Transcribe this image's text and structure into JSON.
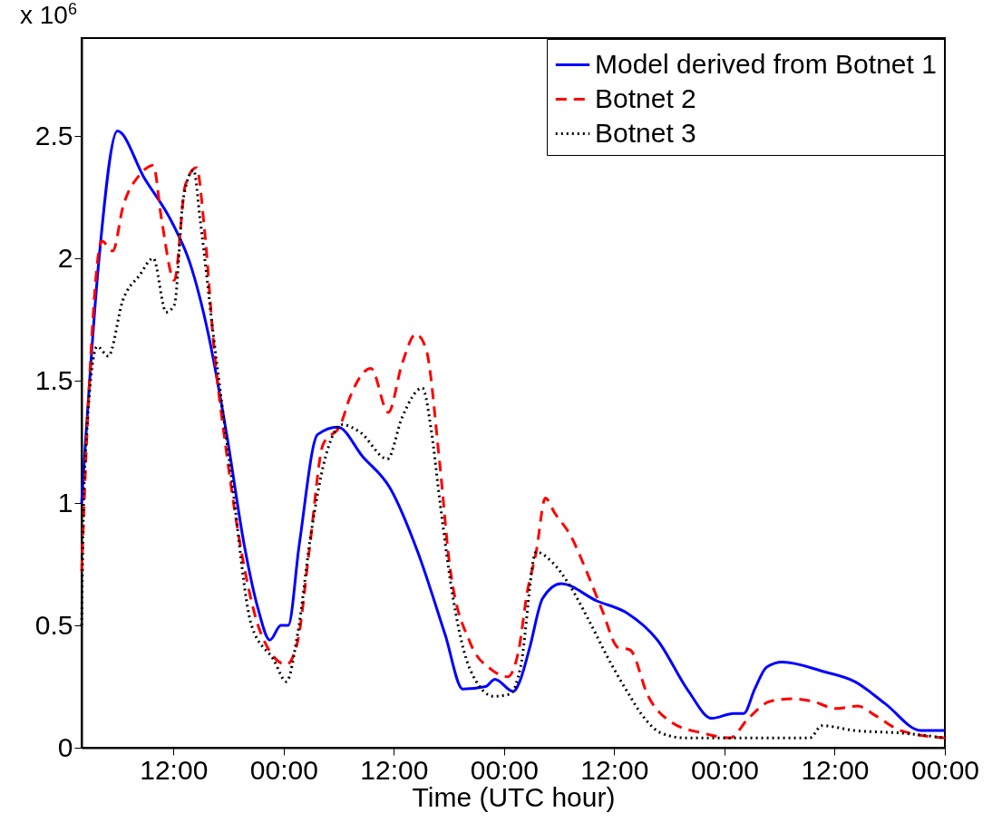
{
  "chart_data": {
    "type": "line",
    "xlabel": "Time (UTC hour)",
    "annotations": [
      "x 10$^{6}$"
    ],
    "xlim": [
      "--01-01T02:00",
      "--01-05T00:00"
    ],
    "ylim": [
      0,
      2.9
    ],
    "xticks": [
      {
        "value": "--01-01T12:00",
        "label": "12:00"
      },
      {
        "value": "--01-02T00:00",
        "label": "00:00"
      },
      {
        "value": "--01-02T12:00",
        "label": "12:00"
      },
      {
        "value": "--01-03T00:00",
        "label": "00:00"
      },
      {
        "value": "--01-03T12:00",
        "label": "12:00"
      },
      {
        "value": "--01-04T00:00",
        "label": "00:00"
      },
      {
        "value": "--01-04T12:00",
        "label": "12:00"
      },
      {
        "value": "--01-05T00:00",
        "label": "00:00"
      }
    ],
    "yticks": [
      0,
      0.5,
      1,
      1.5,
      2,
      2.5
    ],
    "grid": false,
    "legend": "top right",
    "series": [
      {
        "name": "Model derived from Botnet 1",
        "color": "#0000ff",
        "line_style": "solid",
        "x": [
          "--01-01T02:00",
          "--01-01T03:54",
          "--01-01T05:54",
          "--01-01T08:48",
          "--01-01T11:48",
          "--01-01T13:48",
          "--01-01T15:48",
          "--01-01T17:48",
          "--01-01T19:42",
          "--01-01T21:12",
          "--01-01T22:30",
          "--01-01T23:42",
          "--01-02T00:30",
          "--01-02T01:42",
          "--01-02T03:42",
          "--01-02T05:54",
          "--01-02T08:36",
          "--01-02T11:36",
          "--01-02T14:36",
          "--01-02T17:36",
          "--01-02T19:30",
          "--01-02T22:00",
          "--01-02T23:00",
          "--01-03T01:00",
          "--01-03T01:42",
          "--01-03T02:48",
          "--01-03T04:12",
          "--01-03T06:12",
          "--01-03T10:06",
          "--01-03T13:24",
          "--01-03T16:42",
          "--01-03T20:06",
          "--01-03T22:36",
          "--01-04T01:00",
          "--01-04T02:06",
          "--01-04T03:18",
          "--01-04T04:36",
          "--01-04T06:18",
          "--01-04T10:54",
          "--01-04T14:12",
          "--01-04T17:30",
          "--01-04T21:24",
          "--01-05T00:00"
        ],
        "values": [
          1.0,
          2.0,
          2.52,
          2.33,
          2.15,
          1.98,
          1.69,
          1.28,
          0.83,
          0.57,
          0.44,
          0.5,
          0.5,
          0.83,
          1.28,
          1.31,
          1.19,
          1.06,
          0.8,
          0.46,
          0.24,
          0.25,
          0.28,
          0.23,
          0.27,
          0.41,
          0.61,
          0.67,
          0.6,
          0.55,
          0.44,
          0.23,
          0.12,
          0.14,
          0.14,
          0.24,
          0.33,
          0.35,
          0.31,
          0.27,
          0.18,
          0.07,
          0.07
        ]
      },
      {
        "name": "Botnet 2",
        "color": "#ff0000",
        "line_style": "dashed",
        "x": [
          "--01-01T02:00",
          "--01-01T02:48",
          "--01-01T04:12",
          "--01-01T05:24",
          "--01-01T06:30",
          "--01-01T08:18",
          "--01-01T09:48",
          "--01-01T10:42",
          "--01-01T12:06",
          "--01-01T13:18",
          "--01-01T14:30",
          "--01-01T15:24",
          "--01-01T16:24",
          "--01-01T17:48",
          "--01-01T19:36",
          "--01-01T21:30",
          "--01-02T00:18",
          "--01-02T01:30",
          "--01-02T02:48",
          "--01-02T04:18",
          "--01-02T06:12",
          "--01-02T07:12",
          "--01-02T09:30",
          "--01-02T11:24",
          "--01-02T12:54",
          "--01-02T14:24",
          "--01-02T15:30",
          "--01-02T17:00",
          "--01-02T18:06",
          "--01-02T20:18",
          "--01-02T22:36",
          "--01-03T00:24",
          "--01-03T01:36",
          "--01-03T02:30",
          "--01-03T03:30",
          "--01-03T04:30",
          "--01-03T05:30",
          "--01-03T07:12",
          "--01-03T09:06",
          "--01-03T10:42",
          "--01-03T12:24",
          "--01-03T13:42",
          "--01-03T15:42",
          "--01-03T18:24",
          "--01-03T21:36",
          "--01-04T00:36",
          "--01-04T02:36",
          "--01-04T05:00",
          "--01-04T07:18",
          "--01-04T09:30",
          "--01-04T12:12",
          "--01-04T14:30",
          "--01-04T16:30",
          "--01-04T19:12",
          "--01-05T00:00"
        ],
        "values": [
          0.72,
          1.46,
          2.07,
          2.03,
          2.21,
          2.34,
          2.38,
          2.16,
          1.91,
          2.3,
          2.37,
          2.11,
          1.64,
          1.2,
          0.76,
          0.47,
          0.34,
          0.43,
          0.81,
          1.24,
          1.32,
          1.43,
          1.55,
          1.37,
          1.57,
          1.69,
          1.63,
          1.16,
          0.74,
          0.43,
          0.32,
          0.29,
          0.4,
          0.63,
          0.8,
          1.02,
          0.96,
          0.87,
          0.71,
          0.56,
          0.41,
          0.4,
          0.21,
          0.1,
          0.06,
          0.04,
          0.12,
          0.19,
          0.2,
          0.19,
          0.16,
          0.17,
          0.13,
          0.07,
          0.04
        ]
      },
      {
        "name": "Botnet 3",
        "color": "#000000",
        "line_style": "dotted",
        "x": [
          "--01-01T02:00",
          "--01-01T02:18",
          "--01-01T03:42",
          "--01-01T04:54",
          "--01-01T06:30",
          "--01-01T08:18",
          "--01-01T09:48",
          "--01-01T11:12",
          "--01-01T12:06",
          "--01-01T13:06",
          "--01-01T14:12",
          "--01-01T14:54",
          "--01-01T16:24",
          "--01-01T18:18",
          "--01-01T20:30",
          "--01-01T22:54",
          "--01-02T00:18",
          "--01-02T01:30",
          "--01-02T03:00",
          "--01-02T04:30",
          "--01-02T06:24",
          "--01-02T08:18",
          "--01-02T11:18",
          "--01-02T12:54",
          "--01-02T15:06",
          "--01-02T16:06",
          "--01-02T17:00",
          "--01-02T18:30",
          "--01-02T20:18",
          "--01-02T22:54",
          "--01-03T00:42",
          "--01-03T01:48",
          "--01-03T03:30",
          "--01-03T05:12",
          "--01-03T07:12",
          "--01-03T09:06",
          "--01-03T11:42",
          "--01-03T13:24",
          "--01-03T15:06",
          "--01-03T17:06",
          "--01-03T19:42",
          "--01-03T23:24",
          "--01-04T04:18",
          "--01-04T09:18",
          "--01-04T10:36",
          "--01-04T14:12",
          "--01-04T19:12",
          "--01-05T00:00"
        ],
        "values": [
          0.5,
          1.11,
          1.64,
          1.6,
          1.83,
          1.93,
          2.0,
          1.78,
          1.81,
          2.25,
          2.36,
          2.16,
          1.67,
          1.11,
          0.5,
          0.36,
          0.27,
          0.46,
          0.88,
          1.18,
          1.32,
          1.29,
          1.18,
          1.35,
          1.47,
          1.29,
          1.01,
          0.6,
          0.32,
          0.21,
          0.22,
          0.33,
          0.8,
          0.76,
          0.66,
          0.53,
          0.34,
          0.23,
          0.13,
          0.06,
          0.04,
          0.04,
          0.04,
          0.04,
          0.09,
          0.07,
          0.06,
          0.04
        ]
      }
    ]
  }
}
